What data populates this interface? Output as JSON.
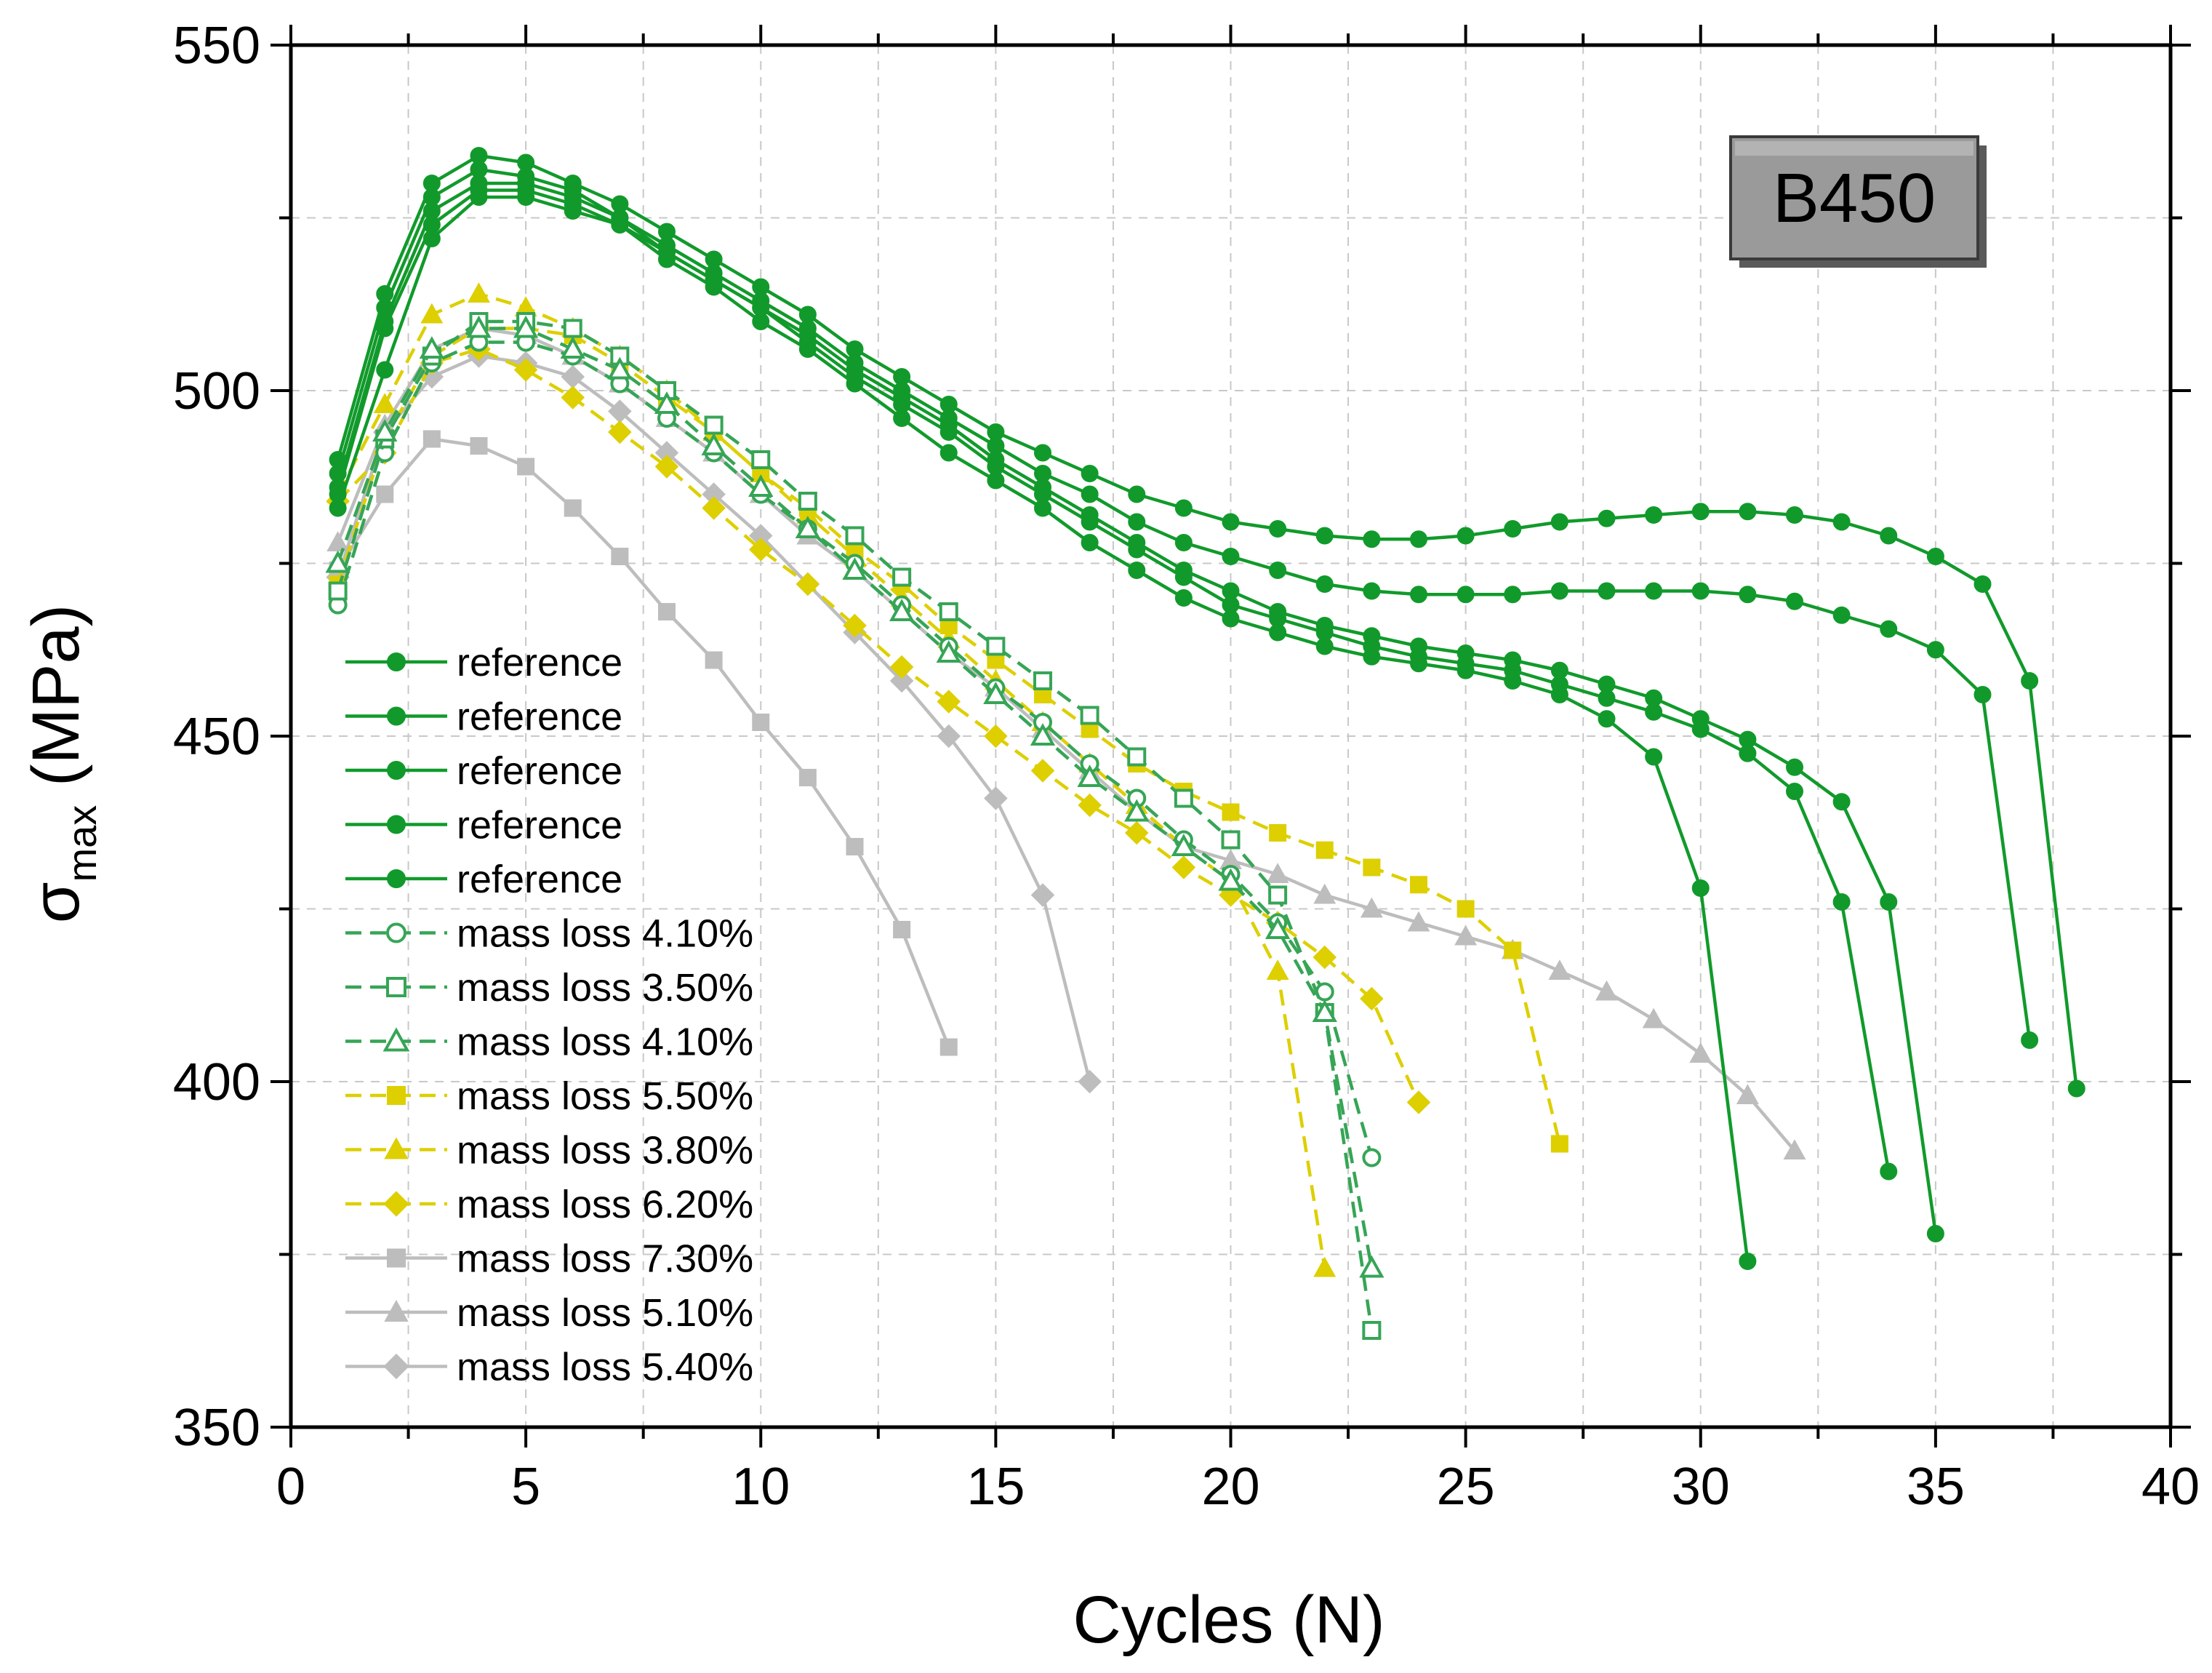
{
  "chart_data": {
    "type": "line",
    "title": "",
    "badge": "B450",
    "xlabel": "Cycles (N)",
    "ylabel": {
      "symbol": "σ",
      "subscript": "max",
      "unit": " (MPa)"
    },
    "xlim": [
      0,
      40
    ],
    "ylim": [
      350,
      550
    ],
    "xticks": [
      0,
      5,
      10,
      15,
      20,
      25,
      30,
      35,
      40
    ],
    "yticks": [
      350,
      400,
      450,
      500,
      550
    ],
    "grid": true,
    "legend_position": "left-middle",
    "colors": {
      "green": "#119A2B",
      "mid_green": "#36A556",
      "yellow": "#DDCF00",
      "gray": "#BDBDBD"
    },
    "series": [
      {
        "name": "reference",
        "color": "#119A2B",
        "dash": "solid",
        "marker": "circle",
        "filled": true,
        "x": [
          1,
          2,
          3,
          4,
          5,
          6,
          7,
          8,
          9,
          10,
          11,
          12,
          13,
          14,
          15,
          16,
          17,
          18,
          19,
          20,
          21,
          22,
          23,
          24,
          25,
          26,
          27,
          28,
          29,
          30,
          31,
          32,
          33,
          34,
          35,
          36,
          37,
          38
        ],
        "y": [
          490,
          514,
          530,
          534,
          533,
          530,
          527,
          523,
          519,
          515,
          511,
          506,
          502,
          498,
          494,
          491,
          488,
          485,
          483,
          481,
          480,
          479,
          478.5,
          478.5,
          479,
          480,
          481,
          481.5,
          482,
          482.5,
          482.5,
          482,
          481,
          479,
          476,
          472,
          458,
          399
        ]
      },
      {
        "name": "reference",
        "color": "#119A2B",
        "dash": "solid",
        "marker": "circle",
        "filled": true,
        "x": [
          1,
          2,
          3,
          4,
          5,
          6,
          7,
          8,
          9,
          10,
          11,
          12,
          13,
          14,
          15,
          16,
          17,
          18,
          19,
          20,
          21,
          22,
          23,
          24,
          25,
          26,
          27,
          28,
          29,
          30,
          31,
          32,
          33,
          34,
          35,
          36,
          37
        ],
        "y": [
          488,
          512,
          528,
          532,
          531,
          529,
          525,
          521,
          517,
          513,
          509,
          504,
          500,
          496,
          492,
          488,
          485,
          481,
          478,
          476,
          474,
          472,
          471,
          470.5,
          470.5,
          470.5,
          471,
          471,
          471,
          471,
          470.5,
          469.5,
          467.5,
          465.5,
          462.5,
          456,
          406
        ]
      },
      {
        "name": "reference",
        "color": "#119A2B",
        "dash": "solid",
        "marker": "circle",
        "filled": true,
        "x": [
          1,
          2,
          3,
          4,
          5,
          6,
          7,
          8,
          9,
          10,
          11,
          12,
          13,
          14,
          15,
          16,
          17,
          18,
          19,
          20,
          21,
          22,
          23,
          24,
          25,
          26,
          27,
          28,
          29,
          30,
          31,
          32,
          33,
          34,
          35
        ],
        "y": [
          486,
          510,
          526,
          530,
          530,
          528,
          525,
          520,
          516,
          512,
          508,
          503,
          499,
          495,
          490,
          486,
          482,
          478,
          474,
          471,
          468,
          466,
          464.5,
          463,
          462,
          461,
          459.5,
          457.5,
          455.5,
          452.5,
          449.5,
          445.5,
          440.5,
          426,
          378
        ]
      },
      {
        "name": "reference",
        "color": "#119A2B",
        "dash": "solid",
        "marker": "circle",
        "filled": true,
        "x": [
          1,
          2,
          3,
          4,
          5,
          6,
          7,
          8,
          9,
          10,
          11,
          12,
          13,
          14,
          15,
          16,
          17,
          18,
          19,
          20,
          21,
          22,
          23,
          24,
          25,
          26,
          27,
          28,
          29,
          30,
          31,
          32,
          33,
          34
        ],
        "y": [
          485,
          509,
          524,
          529,
          529,
          527,
          524,
          520,
          516,
          512,
          507,
          502,
          498,
          494,
          489,
          485,
          481,
          477,
          473,
          469,
          467,
          465,
          463,
          461.5,
          460.5,
          459.5,
          457.5,
          455.5,
          453.5,
          451,
          447.5,
          442,
          426,
          387
        ]
      },
      {
        "name": "reference",
        "color": "#119A2B",
        "dash": "solid",
        "marker": "circle",
        "filled": true,
        "x": [
          1,
          2,
          3,
          4,
          5,
          6,
          7,
          8,
          9,
          10,
          11,
          12,
          13,
          14,
          15,
          16,
          17,
          18,
          19,
          20,
          21,
          22,
          23,
          24,
          25,
          26,
          27,
          28,
          29,
          30,
          31
        ],
        "y": [
          483,
          503,
          522,
          528,
          528,
          526,
          524,
          519,
          515,
          510,
          506,
          501,
          496,
          491,
          487,
          483,
          478,
          474,
          470,
          467,
          465,
          463,
          461.5,
          460.5,
          459.5,
          458,
          456,
          452.5,
          447,
          428,
          374
        ]
      },
      {
        "name": "mass loss 4.10%",
        "color": "#36A556",
        "dash": "dashed",
        "marker": "circle",
        "filled": false,
        "x": [
          1,
          2,
          3,
          4,
          5,
          6,
          7,
          8,
          9,
          10,
          11,
          12,
          13,
          14,
          15,
          16,
          17,
          18,
          19,
          20,
          21,
          22,
          23
        ],
        "y": [
          469,
          491,
          504,
          507,
          507,
          505,
          501,
          496,
          491,
          485,
          480,
          475,
          469,
          463,
          457,
          452,
          446,
          441,
          435,
          430,
          423,
          413,
          389
        ]
      },
      {
        "name": "mass loss 3.50%",
        "color": "#36A556",
        "dash": "dashed",
        "marker": "square",
        "filled": false,
        "x": [
          1,
          2,
          3,
          4,
          5,
          6,
          7,
          8,
          9,
          10,
          11,
          12,
          13,
          14,
          15,
          16,
          17,
          18,
          19,
          20,
          21,
          22,
          23
        ],
        "y": [
          471,
          493,
          505,
          510,
          510,
          509,
          505,
          500,
          495,
          490,
          484,
          479,
          473,
          468,
          463,
          458,
          453,
          447,
          441,
          435,
          427,
          410,
          364
        ]
      },
      {
        "name": "mass loss 4.10%",
        "color": "#36A556",
        "dash": "dashed",
        "marker": "triangle",
        "filled": false,
        "x": [
          1,
          2,
          3,
          4,
          5,
          6,
          7,
          8,
          9,
          10,
          11,
          12,
          13,
          14,
          15,
          16,
          17,
          18,
          19,
          20,
          21,
          22,
          23
        ],
        "y": [
          475,
          494,
          506,
          509,
          509,
          506,
          503,
          498,
          492,
          486,
          480,
          474,
          468,
          462,
          456,
          450,
          444,
          439,
          434,
          429,
          422,
          410,
          373
        ]
      },
      {
        "name": "mass loss 5.50%",
        "color": "#DDCF00",
        "dash": "dashed",
        "marker": "square",
        "filled": true,
        "x": [
          1,
          2,
          3,
          4,
          5,
          6,
          7,
          8,
          9,
          10,
          11,
          12,
          13,
          14,
          15,
          16,
          17,
          18,
          19,
          20,
          21,
          22,
          23,
          24,
          25,
          26,
          27
        ],
        "y": [
          472,
          493,
          505,
          509,
          509,
          508,
          504,
          499,
          494,
          488,
          483,
          477,
          472,
          466,
          461,
          456,
          451,
          446,
          442,
          439,
          436,
          433.5,
          431,
          428.5,
          425,
          419,
          391
        ]
      },
      {
        "name": "mass loss 3.80%",
        "color": "#DDCF00",
        "dash": "dashed",
        "marker": "triangle",
        "filled": true,
        "x": [
          1,
          2,
          3,
          4,
          5,
          6,
          7,
          8,
          9,
          10,
          11,
          12,
          13,
          14,
          15,
          16,
          17,
          18,
          19,
          20,
          21,
          22
        ],
        "y": [
          485,
          498,
          511,
          514,
          512,
          509,
          505,
          500,
          494,
          488,
          482,
          476,
          470,
          464,
          458,
          452,
          446,
          440,
          434,
          429,
          416,
          373
        ]
      },
      {
        "name": "mass loss 6.20%",
        "color": "#DDCF00",
        "dash": "dashed",
        "marker": "diamond",
        "filled": true,
        "x": [
          1,
          2,
          3,
          4,
          5,
          6,
          7,
          8,
          9,
          10,
          11,
          12,
          13,
          14,
          15,
          16,
          17,
          18,
          19,
          20,
          21,
          22,
          23,
          24
        ],
        "y": [
          484,
          491,
          504,
          506,
          503,
          499,
          494,
          489,
          483,
          477,
          472,
          466,
          460,
          455,
          450,
          445,
          440,
          436,
          431,
          427,
          423,
          418,
          412,
          397
        ]
      },
      {
        "name": "mass loss 7.30%",
        "color": "#BDBDBD",
        "dash": "solid",
        "marker": "square",
        "filled": true,
        "x": [
          1,
          2,
          3,
          4,
          5,
          6,
          7,
          8,
          9,
          10,
          11,
          12,
          13,
          14
        ],
        "y": [
          474,
          485,
          493,
          492,
          489,
          483,
          476,
          468,
          461,
          452,
          444,
          434,
          422,
          405
        ]
      },
      {
        "name": "mass loss 5.10%",
        "color": "#BDBDBD",
        "dash": "solid",
        "marker": "triangle",
        "filled": true,
        "x": [
          1,
          2,
          3,
          4,
          5,
          6,
          7,
          8,
          9,
          10,
          11,
          12,
          13,
          14,
          15,
          16,
          17,
          18,
          19,
          20,
          21,
          22,
          23,
          24,
          25,
          26,
          27,
          28,
          29,
          30,
          31,
          32
        ],
        "y": [
          478,
          495,
          506,
          509,
          508,
          505,
          501,
          496,
          491,
          485,
          479,
          474,
          468,
          462,
          457,
          451,
          445,
          439,
          434,
          432,
          430,
          427,
          425,
          423,
          421,
          419,
          416,
          413,
          409,
          404,
          398,
          390
        ]
      },
      {
        "name": "mass loss 5.40%",
        "color": "#BDBDBD",
        "dash": "solid",
        "marker": "diamond",
        "filled": true,
        "x": [
          1,
          2,
          3,
          4,
          5,
          6,
          7,
          8,
          9,
          10,
          11,
          12,
          13,
          14,
          15,
          16,
          17
        ],
        "y": [
          473,
          494,
          502,
          505,
          504,
          502,
          497,
          491,
          485,
          479,
          472,
          465,
          458,
          450,
          441,
          427,
          400
        ]
      }
    ]
  }
}
